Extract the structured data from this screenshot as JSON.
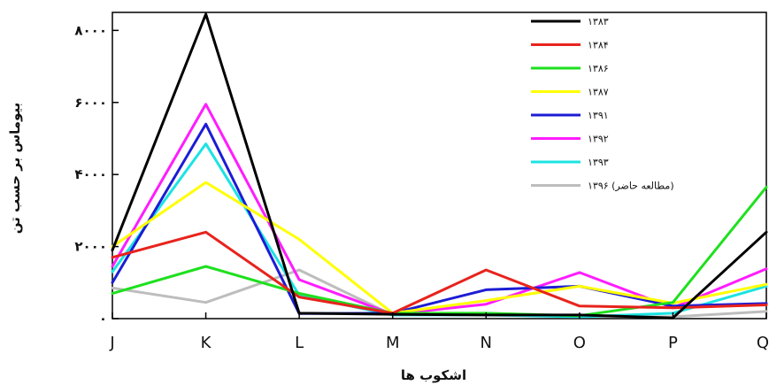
{
  "chart_data": {
    "type": "line",
    "title": "",
    "xlabel": "اشکوب ها",
    "ylabel": "بیوماس بر حسب تن",
    "categories": [
      "J",
      "K",
      "L",
      "M",
      "N",
      "O",
      "P",
      "Q"
    ],
    "ylim": [
      0,
      8500
    ],
    "yticks": [
      0,
      2000,
      4000,
      6000,
      8000
    ],
    "ytick_labels": [
      "۰",
      "۲۰۰۰",
      "۴۰۰۰",
      "۶۰۰۰",
      "۸۰۰۰"
    ],
    "grid": false,
    "legend_position": "top-right",
    "series": [
      {
        "name": "۱۳۸۳",
        "color": "#000000",
        "values": [
          1900,
          8450,
          150,
          120,
          100,
          100,
          20,
          2400
        ]
      },
      {
        "name": "۱۳۸۴",
        "color": "#e8231c",
        "values": [
          1700,
          2400,
          600,
          150,
          1350,
          350,
          300,
          380
        ]
      },
      {
        "name": "۱۳۸۶",
        "color": "#1ee01e",
        "values": [
          700,
          1450,
          700,
          150,
          150,
          80,
          450,
          3650
        ]
      },
      {
        "name": "۱۳۸۷",
        "color": "#ffff00",
        "values": [
          2000,
          3780,
          2200,
          150,
          500,
          900,
          430,
          950
        ]
      },
      {
        "name": "۱۳۹۱",
        "color": "#1c1cd4",
        "values": [
          1000,
          5400,
          140,
          150,
          800,
          900,
          350,
          420
        ]
      },
      {
        "name": "۱۳۹۲",
        "color": "#ff1cff",
        "values": [
          1450,
          5950,
          1080,
          120,
          400,
          1280,
          300,
          1380
        ]
      },
      {
        "name": "۱۳۹۳",
        "color": "#1ce3e3",
        "values": [
          1300,
          4850,
          650,
          100,
          100,
          50,
          150,
          900
        ]
      },
      {
        "name": "۱۳۹۶ (مطالعه حاضر)",
        "color": "#bdbdbd",
        "values": [
          850,
          450,
          1350,
          100,
          150,
          70,
          50,
          200
        ]
      }
    ]
  }
}
